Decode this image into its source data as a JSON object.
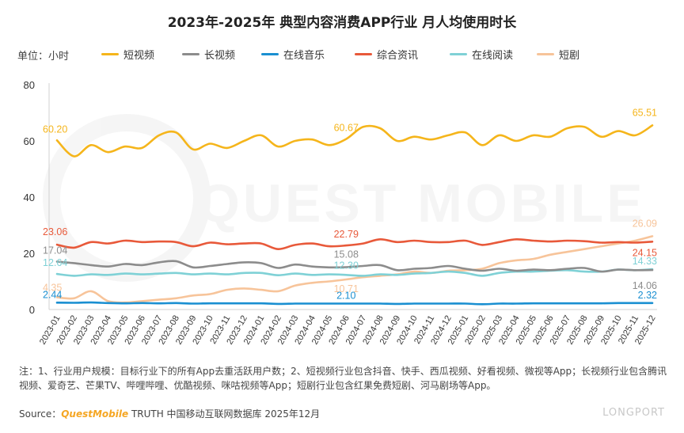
{
  "title": "2023年-2025年 典型内容消费APP行业 月人均使用时长",
  "unit_label": "单位：小时",
  "legend": [
    {
      "name": "短视频",
      "color": "#f5b51b"
    },
    {
      "name": "长视频",
      "color": "#8c8c8c"
    },
    {
      "name": "在线音乐",
      "color": "#1a8fd1"
    },
    {
      "name": "综合资讯",
      "color": "#e8593a"
    },
    {
      "name": "在线阅读",
      "color": "#7fd1d6"
    },
    {
      "name": "短剧",
      "color": "#f7c49a"
    }
  ],
  "chart_data": {
    "type": "line",
    "x": [
      "2023-01",
      "2023-02",
      "2023-03",
      "2023-04",
      "2023-05",
      "2023-06",
      "2023-07",
      "2023-08",
      "2023-09",
      "2023-10",
      "2023-11",
      "2023-12",
      "2024-01",
      "2024-02",
      "2024-03",
      "2024-04",
      "2024-05",
      "2024-06",
      "2024-07",
      "2024-08",
      "2024-09",
      "2024-10",
      "2024-11",
      "2024-12",
      "2025-01",
      "2025-02",
      "2025-03",
      "2025-04",
      "2025-05",
      "2025-06",
      "2025-07",
      "2025-08",
      "2025-09",
      "2025-10",
      "2025-11",
      "2025-12"
    ],
    "ylim": [
      0,
      80
    ],
    "yticks": [
      0,
      20,
      40,
      60,
      80
    ],
    "series": [
      {
        "name": "短视频",
        "color": "#f5b51b",
        "values": [
          60.2,
          54.5,
          58.5,
          56.0,
          58.0,
          57.5,
          62.0,
          63.0,
          57.0,
          59.0,
          57.5,
          60.0,
          62.0,
          58.0,
          60.0,
          60.5,
          58.5,
          60.67,
          65.0,
          64.5,
          60.0,
          61.5,
          60.5,
          62.0,
          63.0,
          58.5,
          62.0,
          60.0,
          62.0,
          61.5,
          64.5,
          65.0,
          61.5,
          63.5,
          62.0,
          65.51
        ]
      },
      {
        "name": "长视频",
        "color": "#8c8c8c",
        "values": [
          17.04,
          16.5,
          15.8,
          15.3,
          16.2,
          15.8,
          16.8,
          17.2,
          15.0,
          15.5,
          16.2,
          16.8,
          16.5,
          14.8,
          16.0,
          15.3,
          15.0,
          15.08,
          15.5,
          15.8,
          14.0,
          14.5,
          14.8,
          15.5,
          14.5,
          13.8,
          14.5,
          13.8,
          14.2,
          14.0,
          14.5,
          14.8,
          13.5,
          14.2,
          14.0,
          14.06
        ]
      },
      {
        "name": "在线音乐",
        "color": "#1a8fd1",
        "values": [
          2.44,
          2.4,
          2.5,
          2.3,
          2.2,
          2.3,
          2.2,
          2.3,
          2.1,
          2.2,
          2.2,
          2.2,
          2.2,
          2.0,
          2.1,
          2.1,
          2.1,
          2.1,
          2.1,
          2.1,
          2.0,
          2.1,
          2.1,
          2.1,
          2.1,
          1.9,
          2.1,
          2.1,
          2.2,
          2.2,
          2.2,
          2.2,
          2.2,
          2.3,
          2.3,
          2.32
        ]
      },
      {
        "name": "综合资讯",
        "color": "#e8593a",
        "values": [
          23.06,
          22.0,
          24.0,
          23.5,
          24.5,
          24.0,
          24.2,
          24.0,
          22.5,
          23.8,
          23.2,
          23.5,
          23.5,
          21.5,
          23.0,
          23.5,
          22.5,
          22.79,
          23.5,
          25.0,
          24.0,
          24.5,
          24.0,
          24.0,
          24.5,
          23.0,
          24.0,
          25.0,
          24.5,
          24.2,
          24.5,
          24.3,
          23.8,
          24.0,
          23.8,
          24.15
        ]
      },
      {
        "name": "在线阅读",
        "color": "#7fd1d6",
        "values": [
          12.64,
          12.0,
          12.5,
          12.3,
          12.8,
          12.5,
          12.8,
          13.0,
          12.5,
          12.8,
          12.5,
          13.0,
          13.0,
          12.2,
          12.8,
          12.3,
          12.5,
          12.3,
          12.0,
          12.5,
          12.3,
          12.8,
          13.0,
          13.5,
          13.0,
          12.0,
          13.0,
          13.5,
          13.5,
          13.8,
          14.0,
          13.5,
          13.5,
          14.2,
          14.0,
          14.33
        ]
      },
      {
        "name": "短剧",
        "color": "#f7c49a",
        "values": [
          4.35,
          4.0,
          6.5,
          3.0,
          2.5,
          3.0,
          3.5,
          4.0,
          5.0,
          5.5,
          7.0,
          7.5,
          7.0,
          6.5,
          8.5,
          9.5,
          10.0,
          10.71,
          11.5,
          12.0,
          12.5,
          13.5,
          13.0,
          13.8,
          14.0,
          14.5,
          16.5,
          17.5,
          18.0,
          19.5,
          20.5,
          21.5,
          22.5,
          23.5,
          24.5,
          26.09
        ]
      }
    ],
    "data_labels": [
      {
        "series": 0,
        "index": 0,
        "text": "60.20"
      },
      {
        "series": 0,
        "index": 17,
        "text": "60.67"
      },
      {
        "series": 0,
        "index": 35,
        "text": "65.51"
      },
      {
        "series": 1,
        "index": 0,
        "text": "17.04"
      },
      {
        "series": 1,
        "index": 17,
        "text": "15.08"
      },
      {
        "series": 1,
        "index": 35,
        "text": "14.06"
      },
      {
        "series": 2,
        "index": 0,
        "text": "2.44"
      },
      {
        "series": 2,
        "index": 17,
        "text": "2.10"
      },
      {
        "series": 2,
        "index": 35,
        "text": "2.32"
      },
      {
        "series": 3,
        "index": 0,
        "text": "23.06"
      },
      {
        "series": 3,
        "index": 17,
        "text": "22.79"
      },
      {
        "series": 3,
        "index": 35,
        "text": "24.15"
      },
      {
        "series": 4,
        "index": 0,
        "text": "12.64"
      },
      {
        "series": 4,
        "index": 17,
        "text": "12.30"
      },
      {
        "series": 4,
        "index": 35,
        "text": "14.33"
      },
      {
        "series": 5,
        "index": 0,
        "text": "4.35"
      },
      {
        "series": 5,
        "index": 17,
        "text": "10.71"
      },
      {
        "series": 5,
        "index": 35,
        "text": "26.09"
      }
    ],
    "legend_position": "top",
    "grid": false
  },
  "notes": "注：1、行业用户规模：目标行业下的所有App去重活跃用户数；2、短视频行业包含抖音、快手、西瓜视频、好看视频、微视等App；长视频行业包含腾讯视频、爱奇艺、芒果TV、哔哩哔哩、优酷视频、咪咕视频等App；短剧行业包含红果免费短剧、河马剧场等App。",
  "source_prefix": "Source：",
  "source_brand": "QuestMobile",
  "source_suffix": " TRUTH 中国移动互联网数据库 2025年12月",
  "watermark": "LONGPORT"
}
